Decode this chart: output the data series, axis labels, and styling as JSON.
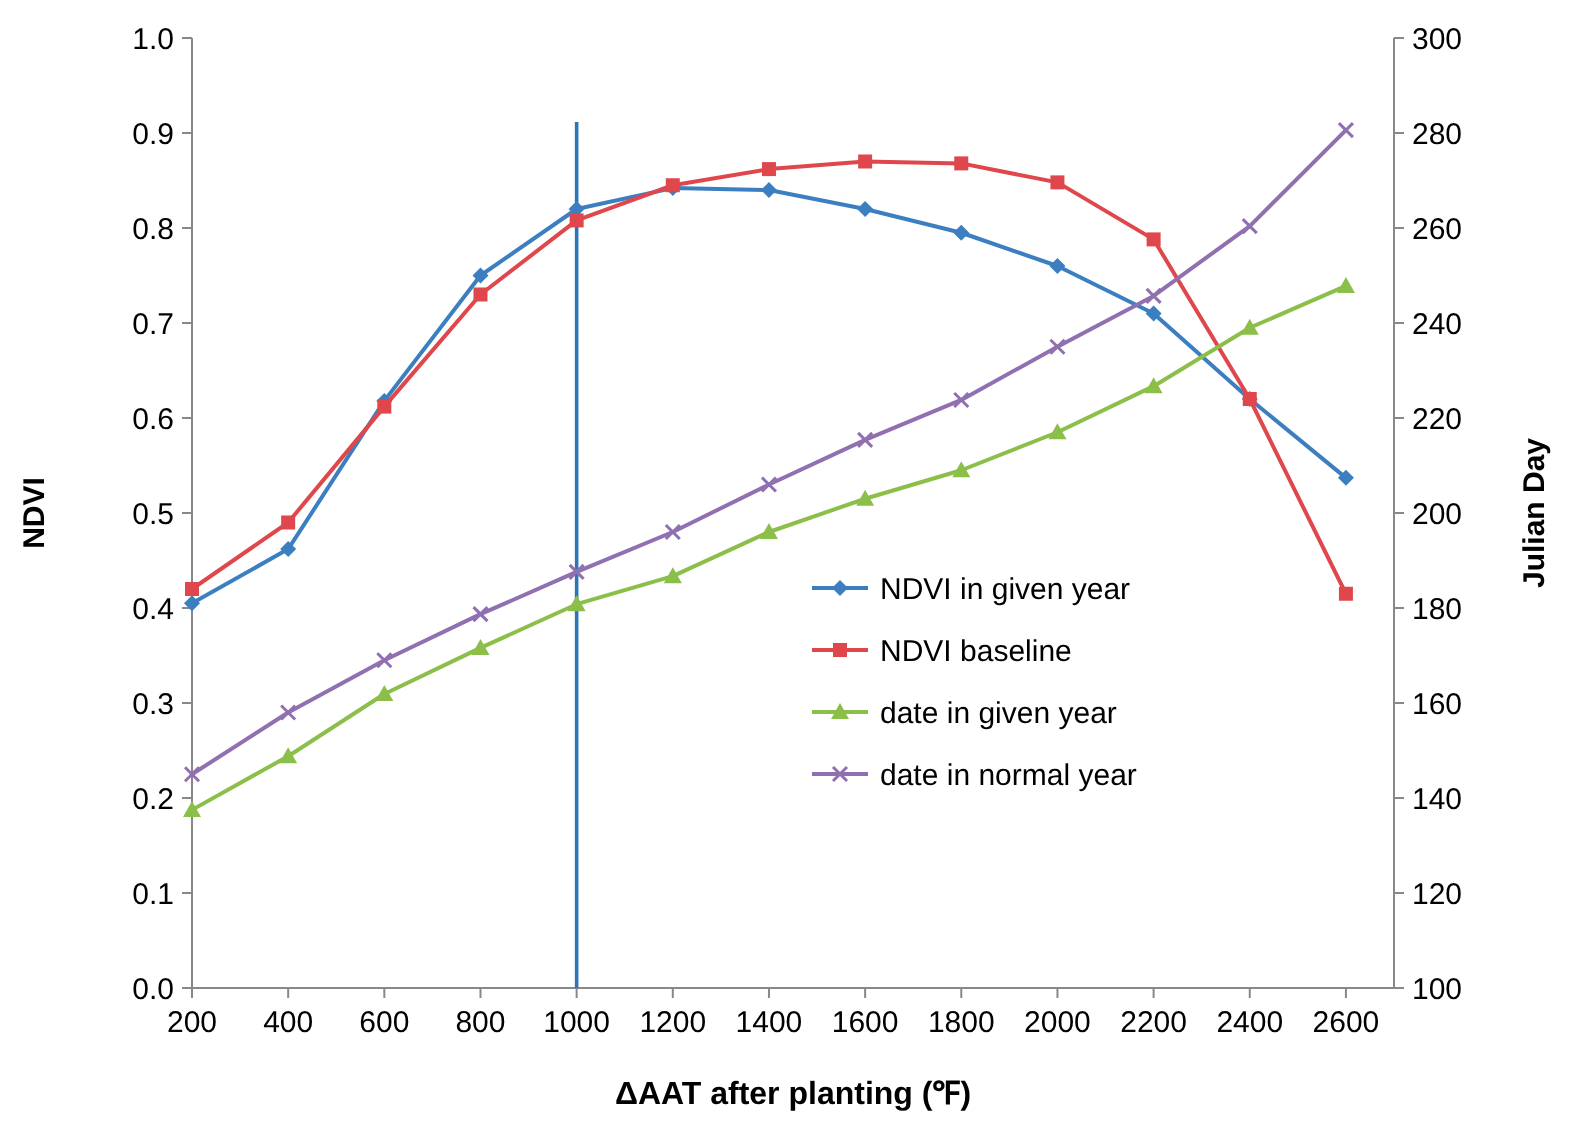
{
  "chart_data": {
    "type": "line",
    "xlabel": "ΔAAT after planting (℉)",
    "ylabel": "NDVI",
    "y2label": "Julian Day",
    "x": [
      200,
      400,
      600,
      800,
      1000,
      1200,
      1400,
      1600,
      1800,
      2000,
      2200,
      2400,
      2600
    ],
    "xlim": [
      200,
      2700
    ],
    "xticks": [
      200,
      400,
      600,
      800,
      1000,
      1200,
      1400,
      1600,
      1800,
      2000,
      2200,
      2400,
      2600
    ],
    "ylim": [
      0,
      1
    ],
    "yticks": [
      {
        "value": 0,
        "label": "0.0"
      },
      {
        "value": 0.1,
        "label": "0.1"
      },
      {
        "value": 0.2,
        "label": "0.2"
      },
      {
        "value": 0.3,
        "label": "0.3"
      },
      {
        "value": 0.4,
        "label": "0.4"
      },
      {
        "value": 0.5,
        "label": "0.5"
      },
      {
        "value": 0.6,
        "label": "0.6"
      },
      {
        "value": 0.7,
        "label": "0.7"
      },
      {
        "value": 0.8,
        "label": "0.8"
      },
      {
        "value": 0.9,
        "label": "0.9"
      },
      {
        "value": 1,
        "label": "1.0"
      }
    ],
    "y2lim": [
      100,
      300
    ],
    "y2ticks": [
      100,
      120,
      140,
      160,
      180,
      200,
      220,
      240,
      260,
      280,
      300
    ],
    "grid": false,
    "legend": "right",
    "ref_lines": [
      {
        "axis": "x",
        "value": 1000,
        "color": "#2e75b6"
      }
    ],
    "series": [
      {
        "name": "NDVI in given year",
        "color": "#3c7fc1",
        "marker": "diamond",
        "values": [
          0.405,
          0.462,
          0.618,
          0.75,
          0.82,
          0.842,
          0.84,
          0.82,
          0.795,
          0.76,
          0.71,
          0.62,
          0.537
        ]
      },
      {
        "name": "NDVI baseline",
        "color": "#e0474c",
        "marker": "square",
        "values": [
          0.42,
          0.49,
          0.612,
          0.73,
          0.808,
          0.845,
          0.862,
          0.87,
          0.868,
          0.848,
          0.788,
          0.62,
          0.415
        ]
      },
      {
        "name": "date in given year",
        "color": "#8cbf4a",
        "marker": "triangle",
        "axis": "y2",
        "values": [
          137.5,
          148.8,
          161.9,
          171.6,
          180.8,
          186.7,
          196,
          203,
          209,
          217,
          226.7,
          239,
          247.8
        ]
      },
      {
        "name": "date in normal year",
        "color": "#9070b0",
        "marker": "cross",
        "axis": "y2",
        "values": [
          145,
          158,
          169,
          178.7,
          187.6,
          196,
          206,
          215.4,
          223.8,
          235,
          245.7,
          260.4,
          280.6
        ]
      }
    ]
  }
}
